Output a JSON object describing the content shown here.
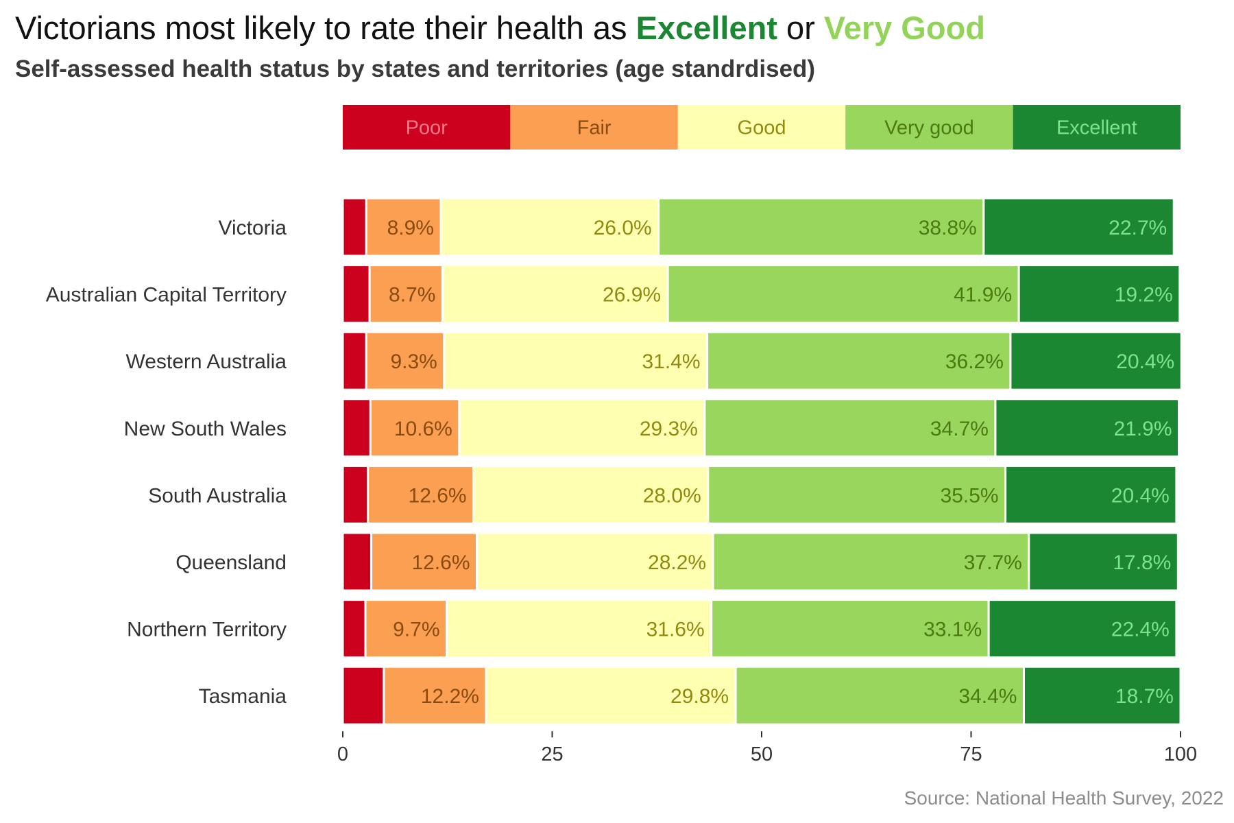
{
  "chart_data": {
    "type": "bar",
    "orientation": "horizontal",
    "stacked": true,
    "title_parts": [
      {
        "text": "Victorians most likely to rate their health as ",
        "color": "#111111"
      },
      {
        "text": "Excellent",
        "color": "#1b8733",
        "bold": true
      },
      {
        "text": " or ",
        "color": "#111111"
      },
      {
        "text": "Very Good",
        "color": "#93d35a",
        "bold": true
      }
    ],
    "subtitle": "Self-assessed health status by states and territories (age standrdised)",
    "caption": "Source: National Health Survey, 2022",
    "xlabel": "",
    "ylabel": "",
    "xlim": [
      0,
      100
    ],
    "xticks": [
      0,
      25,
      50,
      75,
      100
    ],
    "legend_position": "top",
    "grid": false,
    "categories": [
      "Victoria",
      "Australian Capital Territory",
      "Western Australia",
      "New South Wales",
      "South Australia",
      "Queensland",
      "Northern Territory",
      "Tasmania"
    ],
    "series": [
      {
        "name": "Poor",
        "color": "#cc011d",
        "label_color": "#f07a8a",
        "show_labels": false,
        "values": [
          2.8,
          3.2,
          2.8,
          3.3,
          3.0,
          3.4,
          2.7,
          4.9
        ]
      },
      {
        "name": "Fair",
        "color": "#fba052",
        "label_color": "#8a4a10",
        "show_labels": true,
        "values": [
          8.9,
          8.7,
          9.3,
          10.6,
          12.6,
          12.6,
          9.7,
          12.2
        ]
      },
      {
        "name": "Good",
        "color": "#ffffb2",
        "label_color": "#8f8a10",
        "show_labels": true,
        "values": [
          26.0,
          26.9,
          31.4,
          29.3,
          28.0,
          28.2,
          31.6,
          29.8
        ]
      },
      {
        "name": "Very good",
        "color": "#99d65d",
        "label_color": "#4a7a10",
        "show_labels": true,
        "values": [
          38.8,
          41.9,
          36.2,
          34.7,
          35.5,
          37.7,
          33.1,
          34.4
        ]
      },
      {
        "name": "Excellent",
        "color": "#1b8733",
        "label_color": "#7ee28a",
        "show_labels": true,
        "values": [
          22.7,
          19.2,
          20.4,
          21.9,
          20.4,
          17.8,
          22.4,
          18.7
        ]
      }
    ],
    "labels": [
      [
        null,
        "8.9%",
        "26.0%",
        "38.8%",
        "22.7%"
      ],
      [
        null,
        "8.7%",
        "26.9%",
        "41.9%",
        "19.2%"
      ],
      [
        null,
        "9.3%",
        "31.4%",
        "36.2%",
        "20.4%"
      ],
      [
        null,
        "10.6%",
        "29.3%",
        "34.7%",
        "21.9%"
      ],
      [
        null,
        "12.6%",
        "28.0%",
        "35.5%",
        "20.4%"
      ],
      [
        null,
        "12.6%",
        "28.2%",
        "37.7%",
        "17.8%"
      ],
      [
        null,
        "9.7%",
        "31.6%",
        "33.1%",
        "22.4%"
      ],
      [
        null,
        "12.2%",
        "29.8%",
        "34.4%",
        "18.7%"
      ]
    ]
  }
}
